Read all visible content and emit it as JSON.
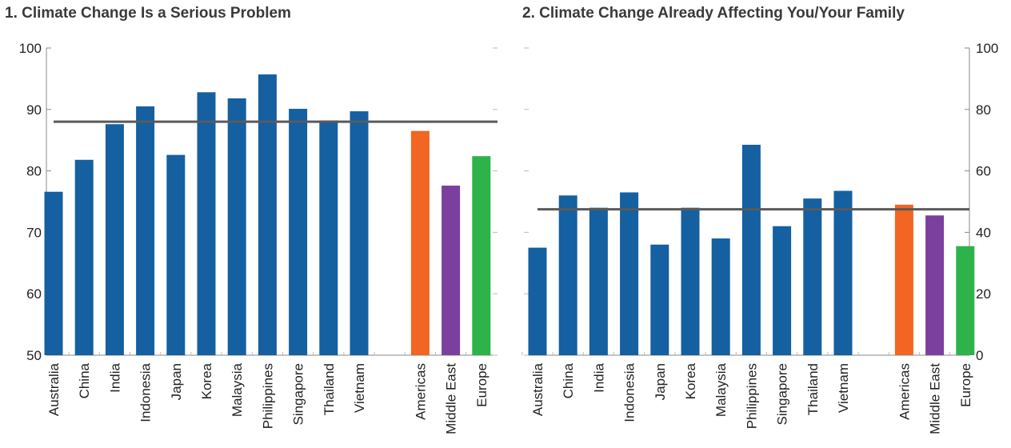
{
  "chart_data": [
    {
      "type": "bar",
      "title": "1. Climate Change Is a Serious Problem",
      "categories": [
        "Australia",
        "China",
        "India",
        "Indonesia",
        "Japan",
        "Korea",
        "Malaysia",
        "Philippines",
        "Singapore",
        "Thailand",
        "Vietnam",
        "",
        "Americas",
        "Middle East",
        "Europe"
      ],
      "values": [
        76.6,
        81.8,
        87.6,
        90.5,
        82.6,
        92.8,
        91.8,
        95.7,
        90.1,
        88.2,
        89.7,
        null,
        86.5,
        77.6,
        82.4
      ],
      "reference_line": 88.0,
      "ylim": [
        50,
        100
      ],
      "yticks": [
        50,
        60,
        70,
        80,
        90,
        100
      ],
      "y_axis_side": "left",
      "xlabel": "",
      "ylabel": ""
    },
    {
      "type": "bar",
      "title": "2. Climate Change Already Affecting You/Your Family",
      "categories": [
        "Australia",
        "China",
        "India",
        "Indonesia",
        "Japan",
        "Korea",
        "Malaysia",
        "Philippines",
        "Singapore",
        "Thailand",
        "Vietnam",
        "",
        "Americas",
        "Middle East",
        "Europe"
      ],
      "values": [
        35,
        52,
        48,
        53,
        36,
        48,
        38,
        68.5,
        42,
        51,
        53.5,
        null,
        49,
        45.5,
        35.5
      ],
      "reference_line": 47.5,
      "ylim": [
        0,
        100
      ],
      "yticks": [
        0,
        20,
        40,
        60,
        80,
        100
      ],
      "y_axis_side": "right",
      "xlabel": "",
      "ylabel": ""
    }
  ],
  "colors": {
    "asia": "#1460a1",
    "americas": "#f26522",
    "middle_east": "#7b3f9e",
    "europe": "#2db34a",
    "reference_line": "#5a5a5a",
    "axis": "#888888"
  },
  "group_colors": [
    "asia",
    "asia",
    "asia",
    "asia",
    "asia",
    "asia",
    "asia",
    "asia",
    "asia",
    "asia",
    "asia",
    "",
    "americas",
    "middle_east",
    "europe"
  ]
}
